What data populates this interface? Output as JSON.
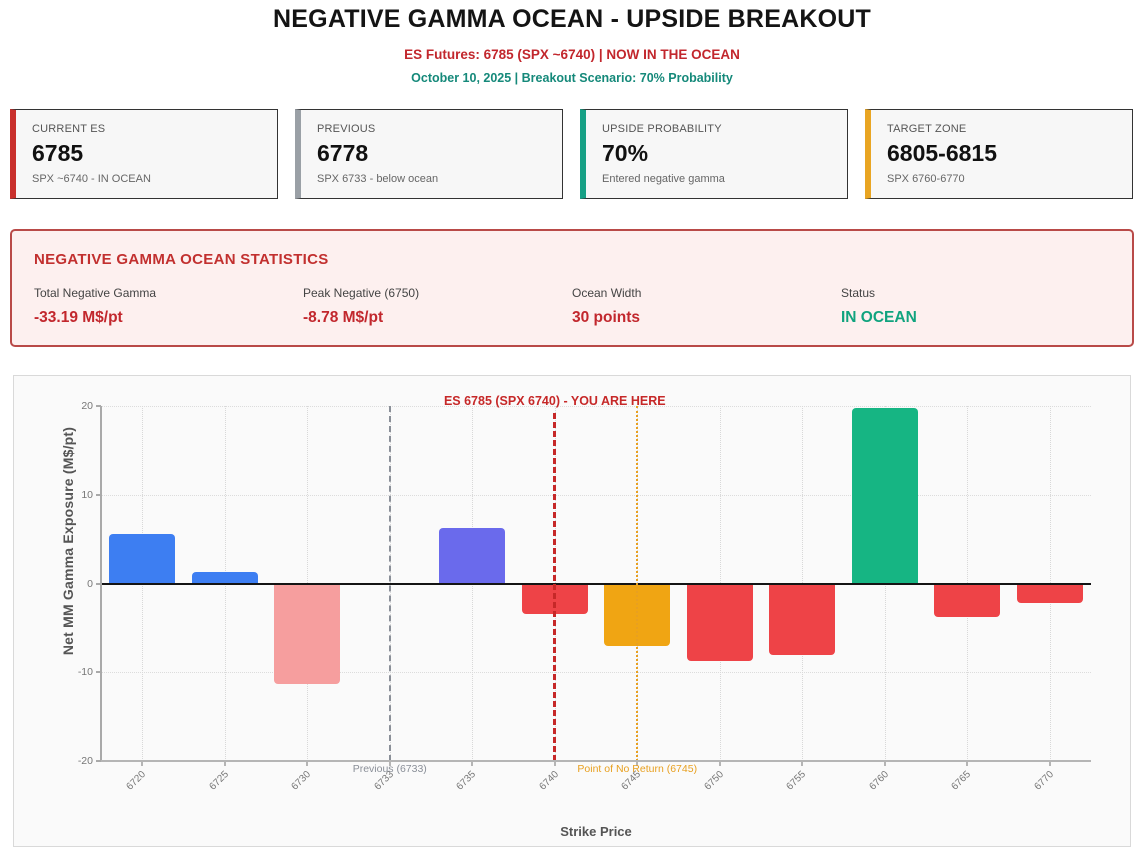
{
  "header": {
    "title": "NEGATIVE GAMMA OCEAN - UPSIDE BREAKOUT",
    "subtitle_primary": "ES Futures: 6785 (SPX ~6740) | NOW IN THE OCEAN",
    "subtitle_secondary": "October 10, 2025 | Breakout Scenario: 70% Probability"
  },
  "summary_cards": [
    {
      "label": "CURRENT ES",
      "value": "6785",
      "sub": "SPX ~6740 - IN OCEAN",
      "accent": "#c9302c"
    },
    {
      "label": "PREVIOUS",
      "value": "6778",
      "sub": "SPX 6733 - below ocean",
      "accent": "#9aa0a6"
    },
    {
      "label": "UPSIDE PROBABILITY",
      "value": "70%",
      "sub": "Entered negative gamma",
      "accent": "#16a085"
    },
    {
      "label": "TARGET ZONE",
      "value": "6805-6815",
      "sub": "SPX 6760-6770",
      "accent": "#e9a522"
    }
  ],
  "stats_panel": {
    "title": "NEGATIVE GAMMA OCEAN STATISTICS",
    "stats": [
      {
        "label": "Total Negative Gamma",
        "value": "-33.19 M$/pt",
        "color": "#c2272d"
      },
      {
        "label": "Peak Negative (6750)",
        "value": "-8.78 M$/pt",
        "color": "#c2272d"
      },
      {
        "label": "Ocean Width",
        "value": "30 points",
        "color": "#c2272d"
      },
      {
        "label": "Status",
        "value": "IN OCEAN",
        "color": "#10a37e"
      }
    ]
  },
  "chart_data": {
    "type": "bar",
    "xlabel": "Strike Price",
    "ylabel": "Net MM Gamma Exposure (M$/pt)",
    "ylim": [
      -20,
      20
    ],
    "yticks": [
      20,
      10,
      0,
      -10,
      -20
    ],
    "grid": true,
    "categories": [
      "6720",
      "6725",
      "6730",
      "6733",
      "6735",
      "6740",
      "6745",
      "6750",
      "6755",
      "6760",
      "6765",
      "6770"
    ],
    "values": [
      5.6,
      1.3,
      -11.3,
      null,
      6.2,
      -3.4,
      -7.0,
      -8.78,
      -8.0,
      19.8,
      -3.8,
      -2.2
    ],
    "bar_colors": [
      "#3d7ef2",
      "#3d7ef2",
      "#f69e9e",
      null,
      "#6a6aec",
      "#ee4347",
      "#f0a513",
      "#ee4347",
      "#ee4347",
      "#16b583",
      "#ee4347",
      "#ee4347"
    ],
    "reference_lines": [
      {
        "category": "6733",
        "label": "Previous (6733)",
        "color": "#8a8f98",
        "style": "dashed",
        "width": 2,
        "label_position": "bottom"
      },
      {
        "category": "6740",
        "label": "ES 6785 (SPX 6740) - YOU ARE HERE",
        "color": "#c62828",
        "style": "dashed",
        "width": 3,
        "label_position": "top"
      },
      {
        "category": "6745",
        "label": "Point of No Return (6745)",
        "color": "#e8a020",
        "style": "dotted",
        "width": 2,
        "label_position": "bottom"
      }
    ]
  }
}
